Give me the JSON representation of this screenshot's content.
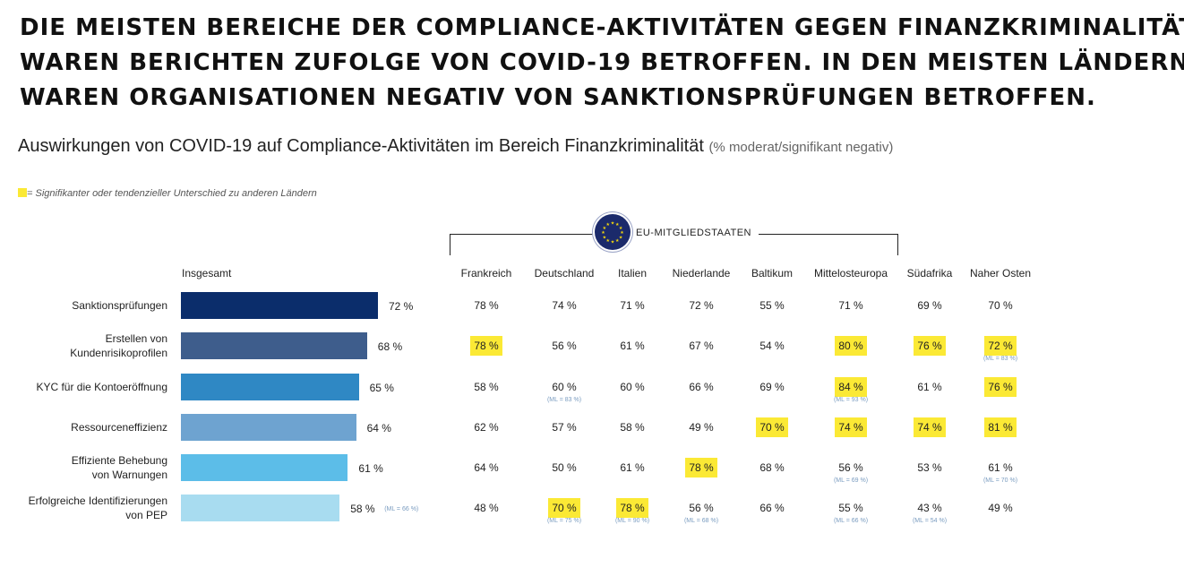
{
  "headline_lines": [
    "DIE MEISTEN BEREICHE DER COMPLIANCE-AKTIVITÄTEN GEGEN FINANZKRIMINALITÄT",
    "WAREN BERICHTEN ZUFOLGE VON COVID-19 BETROFFEN. IN DEN MEISTEN LÄNDERN",
    "WAREN ORGANISATIONEN NEGATIV VON SANKTIONSPRÜFUNGEN BETROFFEN."
  ],
  "subtitle": "Auswirkungen von COVID-19 auf Compliance-Aktivitäten im Bereich Finanzkriminalität",
  "subtitle_note": "(% moderat/signifikant negativ)",
  "legend_text": "= Signifikanter oder tendenzieller Unterschied zu anderen Ländern",
  "eu_group_label": "EU-MITGLIEDSTAATEN",
  "colors": {
    "highlight": "#fbe935",
    "eu_flag": "#1b2a6b",
    "eu_star": "#f5d90a",
    "bars": [
      "#0b2d6b",
      "#3e5d8c",
      "#2f88c4",
      "#6ea3d0",
      "#5cbde8",
      "#a8dcf0"
    ]
  },
  "chart_data": {
    "type": "bar",
    "orientation": "horizontal",
    "total_header": "Insgesamt",
    "categories": [
      "Sanktionsprüfungen",
      "Erstellen von Kundenrisikoprofilen",
      "KYC für die Kontoeröffnung",
      "Ressourceneffizienz",
      "Effiziente Behebung von Warnungen",
      "Erfolgreiche Identifizierungen von PEP"
    ],
    "category_lines": [
      [
        "Sanktionsprüfungen"
      ],
      [
        "Erstellen von",
        "Kundenrisikoprofilen"
      ],
      [
        "KYC für die Kontoeröffnung"
      ],
      [
        "Ressourceneffizienz"
      ],
      [
        "Effiziente Behebung",
        "von Warnungen"
      ],
      [
        "Erfolgreiche Identifizierungen",
        "von PEP"
      ]
    ],
    "values": [
      72,
      68,
      65,
      64,
      61,
      58
    ],
    "value_labels": [
      "72 %",
      "68 %",
      "65 %",
      "64 %",
      "61 %",
      "58 %"
    ],
    "value_notes": [
      "",
      "",
      "",
      "",
      "",
      "(ML = 66 %)"
    ],
    "unit": "%",
    "table": {
      "columns": [
        "Frankreich",
        "Deutschland",
        "Italien",
        "Niederlande",
        "Baltikum",
        "Mittelosteuropa",
        "Südafrika",
        "Naher Osten"
      ],
      "eu_columns": [
        "Frankreich",
        "Deutschland",
        "Italien",
        "Niederlande",
        "Baltikum",
        "Mittelosteuropa"
      ],
      "rows": [
        {
          "values": [
            "78 %",
            "74 %",
            "71 %",
            "72 %",
            "55 %",
            "71 %",
            "69 %",
            "70 %"
          ],
          "highlight": [
            false,
            false,
            false,
            false,
            false,
            false,
            false,
            false
          ],
          "notes": [
            "",
            "",
            "",
            "",
            "",
            "",
            "",
            ""
          ]
        },
        {
          "values": [
            "78 %",
            "56 %",
            "61 %",
            "67 %",
            "54 %",
            "80 %",
            "76 %",
            "72 %"
          ],
          "highlight": [
            true,
            false,
            false,
            false,
            false,
            true,
            true,
            true
          ],
          "notes": [
            "",
            "",
            "",
            "",
            "",
            "",
            "",
            "(ML = 83 %)"
          ]
        },
        {
          "values": [
            "58 %",
            "60 %",
            "60 %",
            "66 %",
            "69 %",
            "84 %",
            "61 %",
            "76 %"
          ],
          "highlight": [
            false,
            false,
            false,
            false,
            false,
            true,
            false,
            true
          ],
          "notes": [
            "",
            "(ML = 83 %)",
            "",
            "",
            "",
            "(ML = 93 %)",
            "",
            ""
          ]
        },
        {
          "values": [
            "62 %",
            "57 %",
            "58 %",
            "49 %",
            "70 %",
            "74 %",
            "74 %",
            "81 %"
          ],
          "highlight": [
            false,
            false,
            false,
            false,
            true,
            true,
            true,
            true
          ],
          "notes": [
            "",
            "",
            "",
            "",
            "",
            "",
            "",
            ""
          ]
        },
        {
          "values": [
            "64 %",
            "50 %",
            "61 %",
            "78 %",
            "68 %",
            "56 %",
            "53 %",
            "61 %"
          ],
          "highlight": [
            false,
            false,
            false,
            true,
            false,
            false,
            false,
            false
          ],
          "notes": [
            "",
            "",
            "",
            "",
            "",
            "(ML = 69 %)",
            "",
            "(ML = 70 %)"
          ]
        },
        {
          "values": [
            "48 %",
            "70 %",
            "78 %",
            "56 %",
            "66 %",
            "55 %",
            "43 %",
            "49 %"
          ],
          "highlight": [
            false,
            true,
            true,
            false,
            false,
            false,
            false,
            false
          ],
          "notes": [
            "",
            "(ML = 75 %)",
            "(ML = 90 %)",
            "(ML = 68 %)",
            "",
            "(ML = 66 %)",
            "(ML = 54 %)",
            ""
          ]
        }
      ]
    }
  }
}
